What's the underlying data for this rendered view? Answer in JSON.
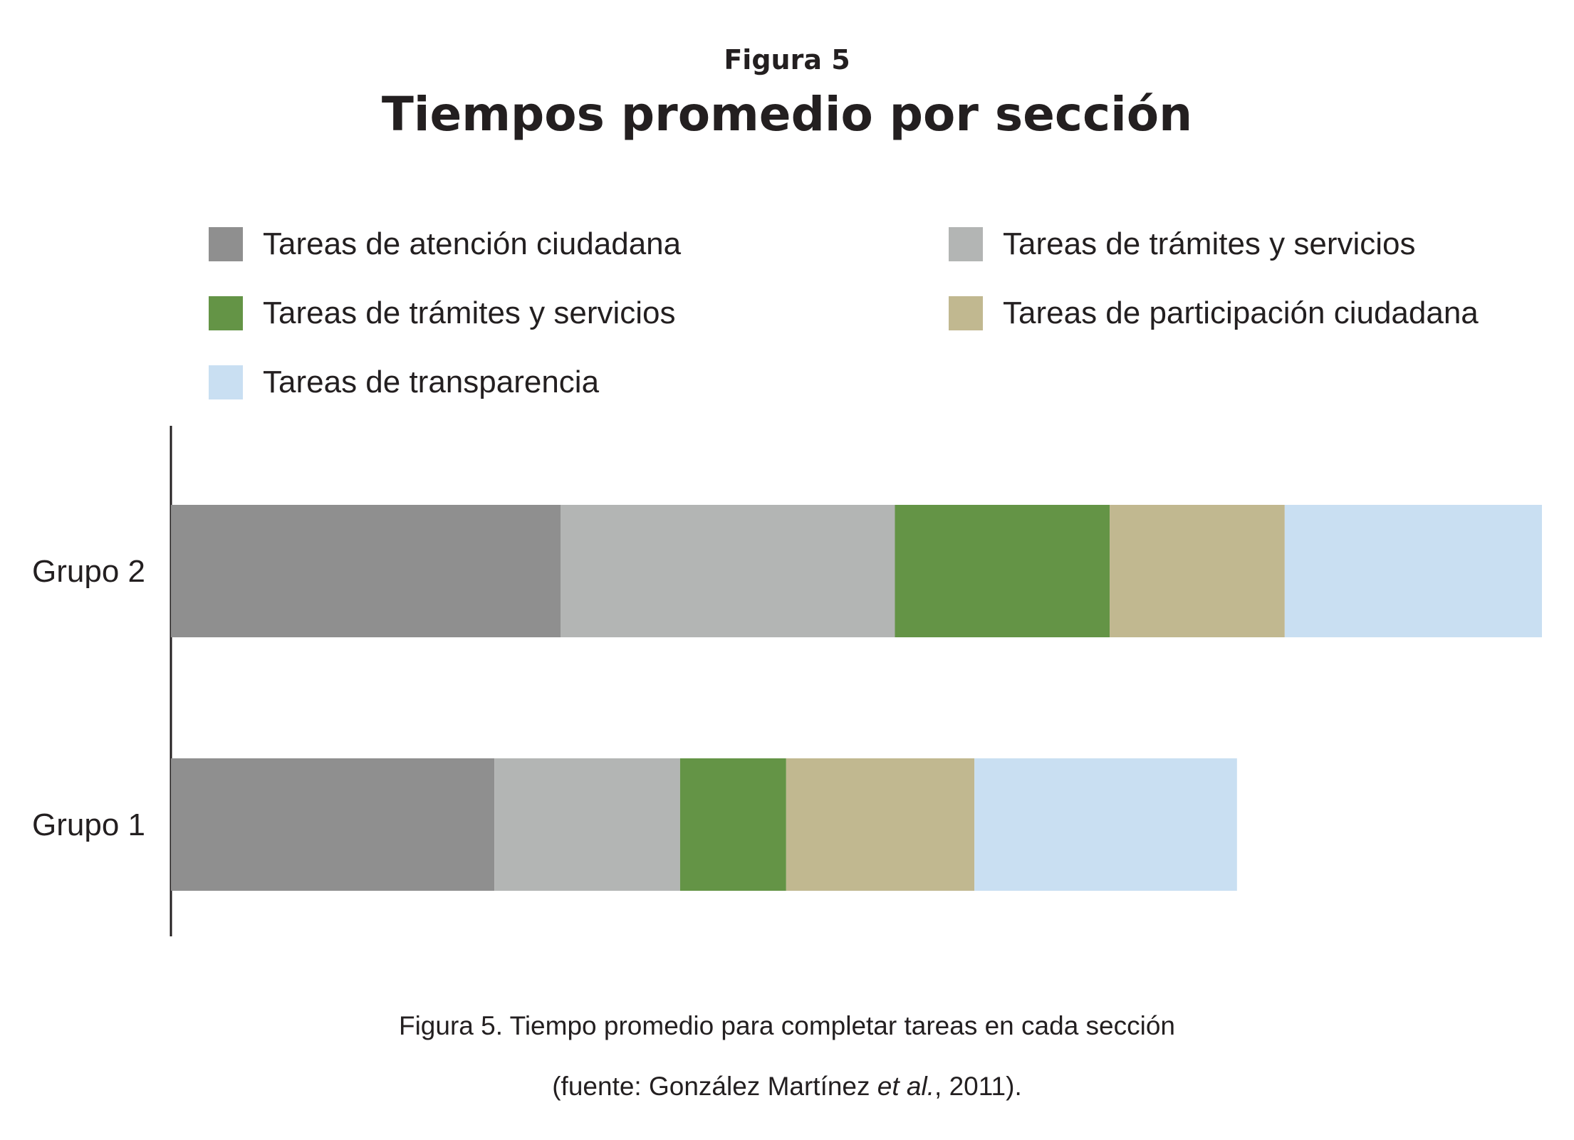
{
  "figure": {
    "label": "Figura 5",
    "title": "Tiempos promedio por sección",
    "caption_line1": "Figura 5. Tiempo promedio para completar tareas en cada sección",
    "caption_line2_prefix": "(fuente: González Martínez ",
    "caption_line2_italic": "et al.",
    "caption_line2_suffix": ", 2011)."
  },
  "legend": [
    {
      "label": "Tareas de atención ciudadana",
      "color": "#8f8f8f"
    },
    {
      "label": "Tareas de trámites y servicios",
      "color": "#b3b5b4"
    },
    {
      "label": "Tareas de trámites y servicios",
      "color": "#649446"
    },
    {
      "label": "Tareas de participación ciudadana",
      "color": "#c1b890"
    },
    {
      "label": "Tareas de transparencia",
      "color": "#c9dff2"
    }
  ],
  "chart_data": {
    "type": "bar",
    "orientation": "horizontal",
    "stacked": true,
    "categories": [
      "Grupo 2",
      "Grupo 1"
    ],
    "series": [
      {
        "name": "Tareas de atención ciudadana",
        "color": "#8f8f8f",
        "values": [
          14.7,
          12.2
        ]
      },
      {
        "name": "Tareas de trámites y servicios",
        "color": "#b3b5b4",
        "values": [
          12.6,
          7.0
        ]
      },
      {
        "name": "Tareas de trámites y servicios",
        "color": "#649446",
        "values": [
          8.1,
          4.0
        ]
      },
      {
        "name": "Tareas de participación ciudadana",
        "color": "#c1b890",
        "values": [
          6.6,
          7.1
        ]
      },
      {
        "name": "Tareas de transparencia",
        "color": "#c9dff2",
        "values": [
          9.7,
          9.9
        ]
      }
    ],
    "xlim": [
      0,
      51.7
    ],
    "axis_ticks_shown": false,
    "grid": false,
    "legend_position": "top"
  }
}
